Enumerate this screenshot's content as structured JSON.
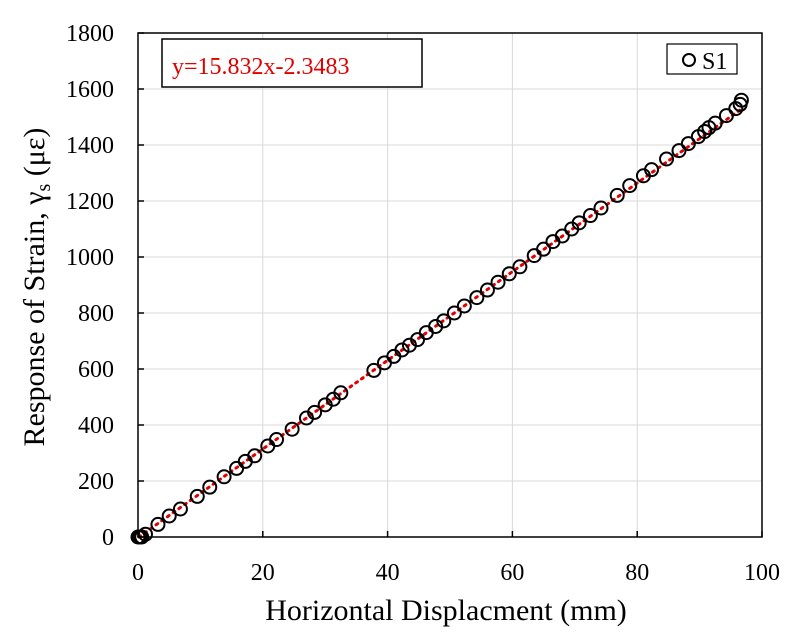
{
  "chart_data": {
    "type": "scatter",
    "xlabel": "Horizontal Displacment (mm)",
    "ylabel_main": "Response of Strain, γ",
    "ylabel_sub": "s",
    "ylabel_unit": " (με)",
    "xlim": [
      0,
      100
    ],
    "ylim": [
      0,
      1800
    ],
    "xticks": [
      0,
      20,
      40,
      60,
      80,
      100
    ],
    "yticks": [
      0,
      200,
      400,
      600,
      800,
      1000,
      1200,
      1400,
      1600,
      1800
    ],
    "grid": true,
    "legend_position": "top-right",
    "annotation": "y=15.832x-2.3483",
    "trendline": {
      "slope": 15.832,
      "intercept": -2.3483,
      "x_range": [
        0,
        97
      ],
      "color": "#e00000",
      "style": "dotted"
    },
    "series": [
      {
        "name": "S1",
        "marker": "open-circle",
        "x": [
          0,
          0.3,
          0.6,
          1.2,
          3.2,
          5.0,
          6.8,
          9.5,
          11.5,
          13.8,
          15.8,
          17.2,
          18.7,
          20.8,
          22.2,
          24.7,
          27.0,
          28.3,
          30.0,
          31.3,
          32.5,
          37.8,
          39.5,
          41.0,
          42.3,
          43.5,
          44.8,
          46.2,
          47.7,
          49.0,
          50.7,
          52.3,
          54.3,
          56.0,
          57.7,
          59.5,
          61.2,
          63.5,
          65.0,
          66.5,
          68.0,
          69.5,
          70.7,
          72.5,
          74.2,
          76.8,
          78.8,
          81.0,
          82.3,
          84.7,
          86.7,
          88.2,
          89.8,
          90.8,
          91.5,
          92.5,
          94.3,
          95.8,
          96.5,
          96.7
        ],
        "y": [
          0,
          0,
          0,
          10,
          45,
          75,
          100,
          145,
          178,
          215,
          245,
          270,
          290,
          325,
          348,
          385,
          425,
          445,
          472,
          492,
          515,
          595,
          622,
          645,
          668,
          685,
          705,
          730,
          752,
          772,
          800,
          825,
          855,
          882,
          910,
          940,
          965,
          1005,
          1028,
          1055,
          1075,
          1100,
          1122,
          1148,
          1175,
          1220,
          1255,
          1290,
          1312,
          1350,
          1380,
          1405,
          1430,
          1448,
          1462,
          1478,
          1505,
          1530,
          1545,
          1560
        ]
      }
    ]
  }
}
